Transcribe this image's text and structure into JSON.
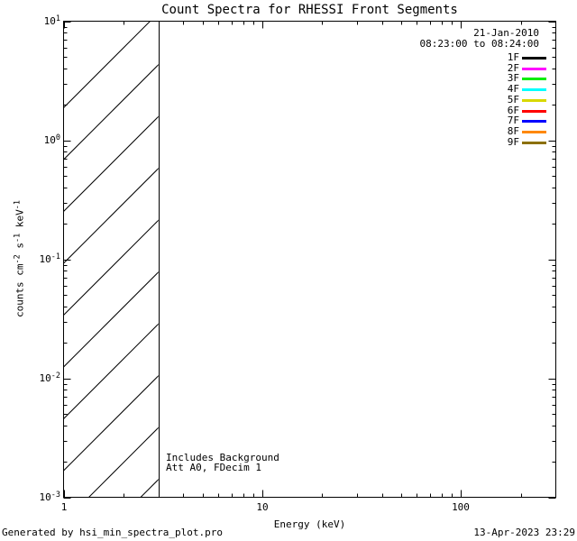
{
  "title": "Count Spectra for RHESSI Front Segments",
  "header": {
    "date": "21-Jan-2010",
    "time_range": "08:23:00 to 08:24:00"
  },
  "footer": {
    "left": "Generated by hsi_min_spectra_plot.pro",
    "right": "13-Apr-2023 23:29"
  },
  "chart_data": {
    "type": "line",
    "title": "Count Spectra for RHESSI Front Segments",
    "xlabel": "Energy (keV)",
    "ylabel": "counts cm^-2 s^-1 keV^-1",
    "ylabel_rich": [
      [
        "text",
        "counts cm"
      ],
      [
        "sup",
        "-2"
      ],
      [
        "text",
        " s"
      ],
      [
        "sup",
        "-1"
      ],
      [
        "text",
        " keV"
      ],
      [
        "sup",
        "-1"
      ]
    ],
    "xscale": "log",
    "yscale": "log",
    "xlim": [
      1,
      300
    ],
    "ylim": [
      0.001,
      10
    ],
    "grid": false,
    "legend_position": "top-right",
    "x_major_ticks": [
      {
        "value": 1,
        "label": "1"
      },
      {
        "value": 10,
        "label": "10"
      },
      {
        "value": 100,
        "label": "100"
      }
    ],
    "y_major_ticks": [
      {
        "value": 10,
        "base": "10",
        "exp": "1"
      },
      {
        "value": 1,
        "base": "10",
        "exp": "0"
      },
      {
        "value": 0.1,
        "base": "10",
        "exp": "-1"
      },
      {
        "value": 0.01,
        "base": "10",
        "exp": "-2"
      },
      {
        "value": 0.001,
        "base": "10",
        "exp": "-3"
      }
    ],
    "series": [
      {
        "name": "1F",
        "color": "#000000",
        "values": []
      },
      {
        "name": "2F",
        "color": "#ff00ff",
        "values": []
      },
      {
        "name": "3F",
        "color": "#00ee00",
        "values": []
      },
      {
        "name": "4F",
        "color": "#00ffff",
        "values": []
      },
      {
        "name": "5F",
        "color": "#d8d800",
        "values": []
      },
      {
        "name": "6F",
        "color": "#ff0000",
        "values": []
      },
      {
        "name": "7F",
        "color": "#0000ff",
        "values": []
      },
      {
        "name": "8F",
        "color": "#ff8800",
        "values": []
      },
      {
        "name": "9F",
        "color": "#8c7000",
        "values": []
      }
    ],
    "hatched_region": {
      "x_start": 1,
      "x_end": 3
    },
    "annotations": [
      "Includes Background",
      "Att A0, FDecim 1"
    ]
  }
}
